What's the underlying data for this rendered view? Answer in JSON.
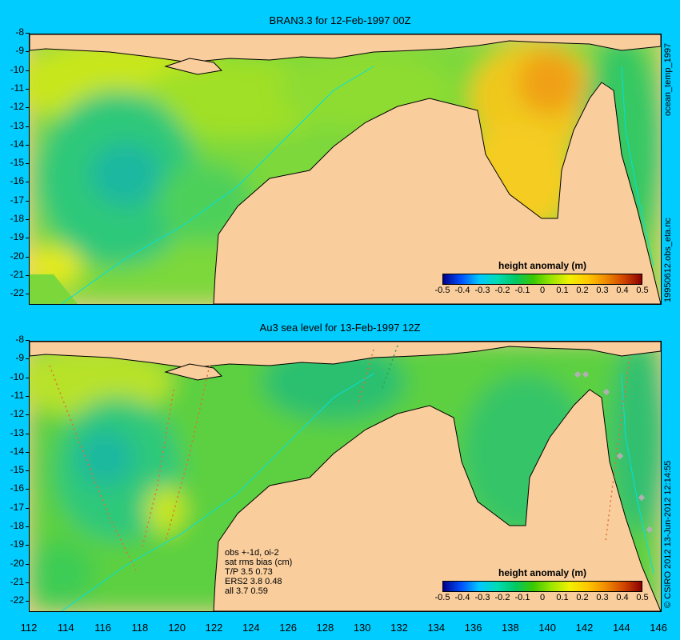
{
  "top_panel": {
    "title": "BRAN3.3 for 12-Feb-1997 00Z",
    "side_label": "ocean_temp_1997",
    "side_label_2": "19950612.obs_eta.nc"
  },
  "bottom_panel": {
    "title": "Au3 sea level  for 13-Feb-1997 12Z",
    "side_label": "© CSIRO 2012  13-Jun-2012 12:14:55",
    "notes": [
      "obs +-1d, oi-2",
      "sat rms bias (cm)",
      "T/P  3.5 0.73",
      "ERS2 3.8 0.48",
      "all 3.7 0.59"
    ]
  },
  "colorbar": {
    "title": "height anomaly (m)",
    "labels": [
      "-0.5",
      "-0.4",
      "-0.3",
      "-0.2",
      "-0.1",
      "0",
      "0.1",
      "0.2",
      "0.3",
      "0.4",
      "0.5"
    ]
  },
  "y_ticks": [
    "-8",
    "-9",
    "-10",
    "-11",
    "-12",
    "-13",
    "-14",
    "-15",
    "-16",
    "-17",
    "-18",
    "-19",
    "-20",
    "-21",
    "-22"
  ],
  "x_ticks": [
    "112",
    "114",
    "116",
    "118",
    "120",
    "122",
    "124",
    "126",
    "128",
    "130",
    "132",
    "134",
    "136",
    "138",
    "140",
    "142",
    "144",
    "146"
  ],
  "colors": {
    "background": "#00ccff",
    "land": "#f9cd9c",
    "coast_line": "#00e0e0"
  }
}
